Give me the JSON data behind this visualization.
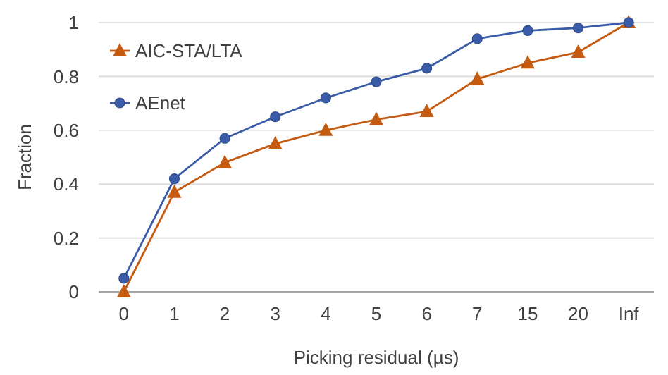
{
  "chart_data": {
    "type": "line",
    "xlabel": "Picking residual (µs)",
    "ylabel": "Fraction",
    "categories": [
      "0",
      "1",
      "2",
      "3",
      "4",
      "5",
      "6",
      "7",
      "15",
      "20",
      "Inf"
    ],
    "series": [
      {
        "name": "AIC-STA/LTA",
        "color": "#c55a11",
        "marker": "triangle",
        "values": [
          0,
          0.37,
          0.48,
          0.55,
          0.6,
          0.64,
          0.67,
          0.79,
          0.85,
          0.89,
          1
        ]
      },
      {
        "name": "AEnet",
        "color": "#3a5ba8",
        "marker": "circle",
        "values": [
          0.05,
          0.42,
          0.57,
          0.65,
          0.72,
          0.78,
          0.83,
          0.94,
          0.97,
          0.98,
          1
        ]
      }
    ],
    "ylim": [
      0,
      1
    ],
    "yticks": [
      0,
      0.2,
      0.4,
      0.6,
      0.8,
      1
    ],
    "grid": "y",
    "legend": "top left",
    "line_style": "solid"
  }
}
